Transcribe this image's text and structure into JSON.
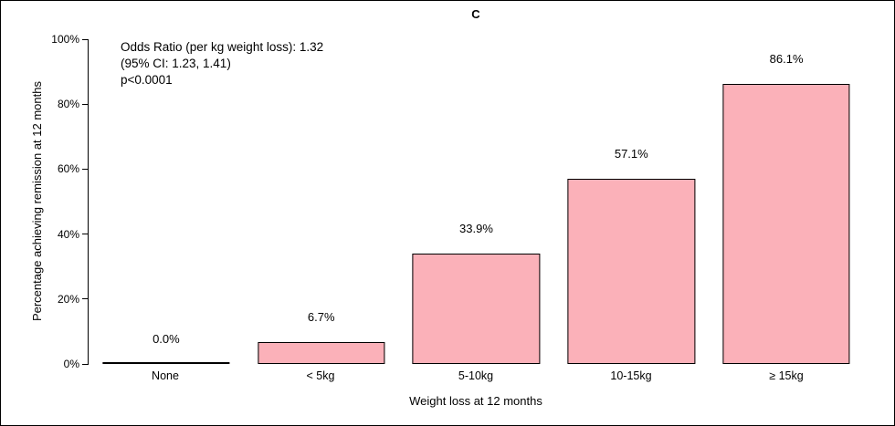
{
  "chart_data": {
    "type": "bar",
    "title": "C",
    "categories": [
      "None",
      "< 5kg",
      "5-10kg",
      "10-15kg",
      "≥ 15kg"
    ],
    "values": [
      0.0,
      6.7,
      33.9,
      57.1,
      86.1
    ],
    "value_labels": [
      "0.0%",
      "6.7%",
      "33.9%",
      "57.1%",
      "86.1%"
    ],
    "xlabel": "Weight loss at 12 months",
    "ylabel": "Percentage achieving remission at 12 months",
    "ylim": [
      0,
      100
    ],
    "yticks": [
      0,
      20,
      40,
      60,
      80,
      100
    ],
    "ytick_labels": [
      "0%",
      "20%",
      "40%",
      "60%",
      "80%",
      "100%"
    ],
    "bar_color": "#FBB1B9",
    "bar_border_color": "#000000",
    "grid": false,
    "legend_position": "none",
    "annotation": {
      "lines": [
        "Odds Ratio (per kg weight loss): 1.32",
        "(95% CI: 1.23, 1.41)",
        "p<0.0001"
      ]
    }
  }
}
